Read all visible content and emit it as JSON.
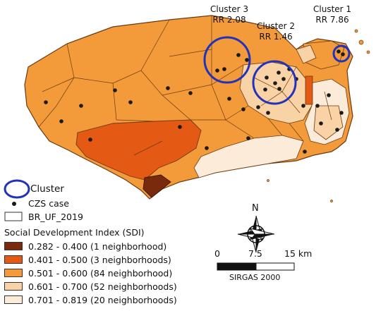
{
  "clusters": [
    {
      "name": "Cluster 3",
      "rr": "RR 2.08"
    },
    {
      "name": "Cluster 2",
      "rr": "RR 1.46"
    },
    {
      "name": "Cluster 1",
      "rr": "RR 7.86"
    }
  ],
  "legend": {
    "cluster_label": "Cluster",
    "case_label": "CZS case",
    "boundary_label": "BR_UF_2019",
    "sdi_title": "Social Development Index (SDI)",
    "classes": [
      {
        "label": "0.282 - 0.400 (1 neighborhood)",
        "color": "#7a2a0c"
      },
      {
        "label": "0.401 - 0.500 (3 neighborhoods)",
        "color": "#e45a15"
      },
      {
        "label": "0.501 - 0.600 (84 neighborhood)",
        "color": "#f39a3a"
      },
      {
        "label": "0.601 - 0.700 (52 neighborhoods)",
        "color": "#f9d2a5"
      },
      {
        "label": "0.701 - 0.819 (20 neighborhoods)",
        "color": "#fdebd9"
      }
    ]
  },
  "scale": {
    "ticks": [
      "0",
      "7.5",
      "15 km"
    ],
    "crs": "SIRGAS 2000"
  },
  "north": {
    "label": "N"
  },
  "colors": {
    "cluster_ring": "#2233bb",
    "case_dot": "#1a1a1a",
    "boundary": "#6b3a10"
  }
}
